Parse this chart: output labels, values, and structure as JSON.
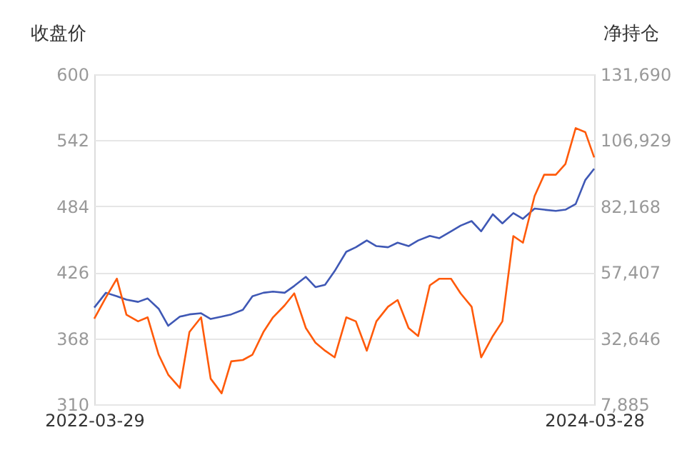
{
  "chart_data": {
    "type": "line",
    "ylabel": "收盘价",
    "y2label": "净持仓",
    "x": [
      "2022-03-29",
      "2022-04-15",
      "2022-05-01",
      "2022-05-15",
      "2022-06-01",
      "2022-06-15",
      "2022-07-01",
      "2022-07-15",
      "2022-08-01",
      "2022-08-15",
      "2022-09-01",
      "2022-09-15",
      "2022-10-01",
      "2022-10-15",
      "2022-11-01",
      "2022-11-15",
      "2022-12-01",
      "2022-12-15",
      "2023-01-01",
      "2023-01-15",
      "2023-02-01",
      "2023-02-15",
      "2023-03-01",
      "2023-03-15",
      "2023-04-01",
      "2023-04-15",
      "2023-05-01",
      "2023-05-15",
      "2023-06-01",
      "2023-06-15",
      "2023-07-01",
      "2023-07-15",
      "2023-08-01",
      "2023-08-15",
      "2023-09-01",
      "2023-09-15",
      "2023-10-01",
      "2023-10-15",
      "2023-11-01",
      "2023-11-15",
      "2023-12-01",
      "2023-12-15",
      "2024-01-01",
      "2024-01-15",
      "2024-02-01",
      "2024-02-15",
      "2024-03-01",
      "2024-03-15",
      "2024-03-28"
    ],
    "series": [
      {
        "color": "#3f58b5",
        "axis": "y",
        "values": [
          395,
          408,
          405,
          402,
          400,
          403,
          394,
          379,
          387,
          389,
          390,
          385,
          387,
          389,
          393,
          405,
          408,
          409,
          408,
          414,
          422,
          413,
          415,
          427,
          444,
          448,
          454,
          449,
          448,
          452,
          449,
          454,
          458,
          456,
          462,
          467,
          471,
          462,
          477,
          469,
          478,
          473,
          482,
          481,
          480,
          481,
          486,
          507,
          517
        ]
      },
      {
        "color": "#ff5a0a",
        "axis": "y2",
        "values": [
          40000,
          48000,
          55000,
          41500,
          39000,
          40500,
          26500,
          19000,
          14000,
          35000,
          40500,
          17500,
          12000,
          24000,
          24500,
          26500,
          35000,
          40500,
          45000,
          49500,
          36500,
          31000,
          28000,
          25500,
          40500,
          39000,
          28000,
          39000,
          44500,
          47000,
          36500,
          33500,
          52500,
          55000,
          55000,
          49500,
          44500,
          25500,
          33500,
          39000,
          71000,
          68500,
          86000,
          94000,
          94000,
          98000,
          111500,
          110000,
          100500
        ]
      }
    ],
    "xlim": [
      "2022-03-29",
      "2024-03-28"
    ],
    "xticks": [
      "2022-03-29",
      "2024-03-28"
    ],
    "ylim": [
      310,
      600
    ],
    "yticks": [
      310,
      368,
      426,
      484,
      542,
      600
    ],
    "y2lim": [
      7885,
      131690
    ],
    "y2ticks": [
      {
        "value": 7885,
        "label": "7,885"
      },
      {
        "value": 32646,
        "label": "32,646"
      },
      {
        "value": 57407,
        "label": "57,407"
      },
      {
        "value": 82168,
        "label": "82,168"
      },
      {
        "value": 106929,
        "label": "106,929"
      },
      {
        "value": 131690,
        "label": "131,690"
      }
    ],
    "grid": "y",
    "marker": "none",
    "line_style": "solid"
  }
}
